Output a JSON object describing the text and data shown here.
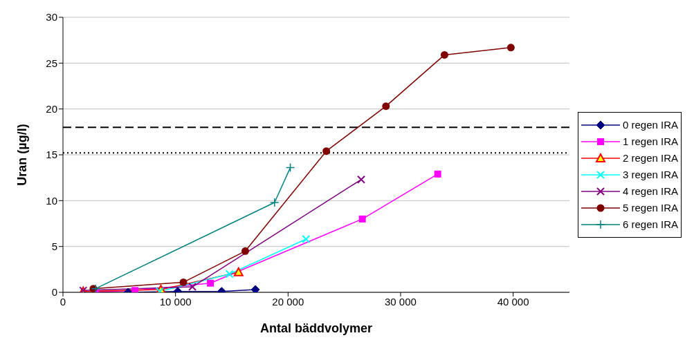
{
  "chart_data": {
    "type": "line",
    "xlabel": "Antal bäddvolymer",
    "ylabel": "Uran (µg/l)",
    "xlim": [
      0,
      45000
    ],
    "xticks": [
      0,
      {
        "value": 10000,
        "label": "10 000"
      },
      {
        "value": 20000,
        "label": "20 000"
      },
      {
        "value": 30000,
        "label": "30 000"
      },
      {
        "value": 40000,
        "label": "40 000"
      }
    ],
    "ylim": [
      0,
      30
    ],
    "yticks": [
      0,
      5,
      10,
      15,
      20,
      25,
      30
    ],
    "grid": "y",
    "legend": "right",
    "line_style": "solid",
    "series": [
      {
        "name": "0 regen IRA",
        "color": "#000080",
        "marker": "diamond",
        "x": [
          5800,
          10200,
          14100,
          17100
        ],
        "values": [
          0,
          0.1,
          0.1,
          0.3
        ]
      },
      {
        "name": "1 regen IRA",
        "color": "#ff00ff",
        "marker": "square",
        "x": [
          2900,
          6400,
          13100,
          26600,
          33300
        ],
        "values": [
          0,
          0.2,
          1.0,
          8.0,
          12.9
        ]
      },
      {
        "name": "2 regen IRA",
        "color": "#ff0000",
        "marker": "triangle",
        "x": [
          1800,
          8700,
          15600
        ],
        "values": [
          0.1,
          0.3,
          2.2
        ]
      },
      {
        "name": "3 regen IRA",
        "color": "#00ffff",
        "marker": "cross",
        "x": [
          8600,
          14800,
          21600
        ],
        "values": [
          0.1,
          2.0,
          5.8
        ]
      },
      {
        "name": "4 regen IRA",
        "color": "#800080",
        "marker": "cross",
        "x": [
          1800,
          11500,
          26500
        ],
        "values": [
          0.2,
          0.6,
          12.3
        ]
      },
      {
        "name": "5 regen IRA",
        "color": "#800000",
        "marker": "circle",
        "x": [
          2700,
          10700,
          16200,
          23400,
          28700,
          33900,
          39800
        ],
        "values": [
          0.4,
          1.1,
          4.5,
          15.4,
          20.3,
          25.9,
          26.7
        ]
      },
      {
        "name": "6 regen IRA",
        "color": "#008080",
        "marker": "plus",
        "x": [
          2900,
          18800,
          20200
        ],
        "values": [
          0.4,
          9.8,
          13.6
        ]
      }
    ],
    "ref_lines": [
      {
        "axis": "y",
        "value": 18.0,
        "color": "#000000",
        "line_style": "dashed"
      },
      {
        "axis": "y",
        "value": 15.2,
        "color": "#000000",
        "line_style": "dotted"
      }
    ]
  }
}
